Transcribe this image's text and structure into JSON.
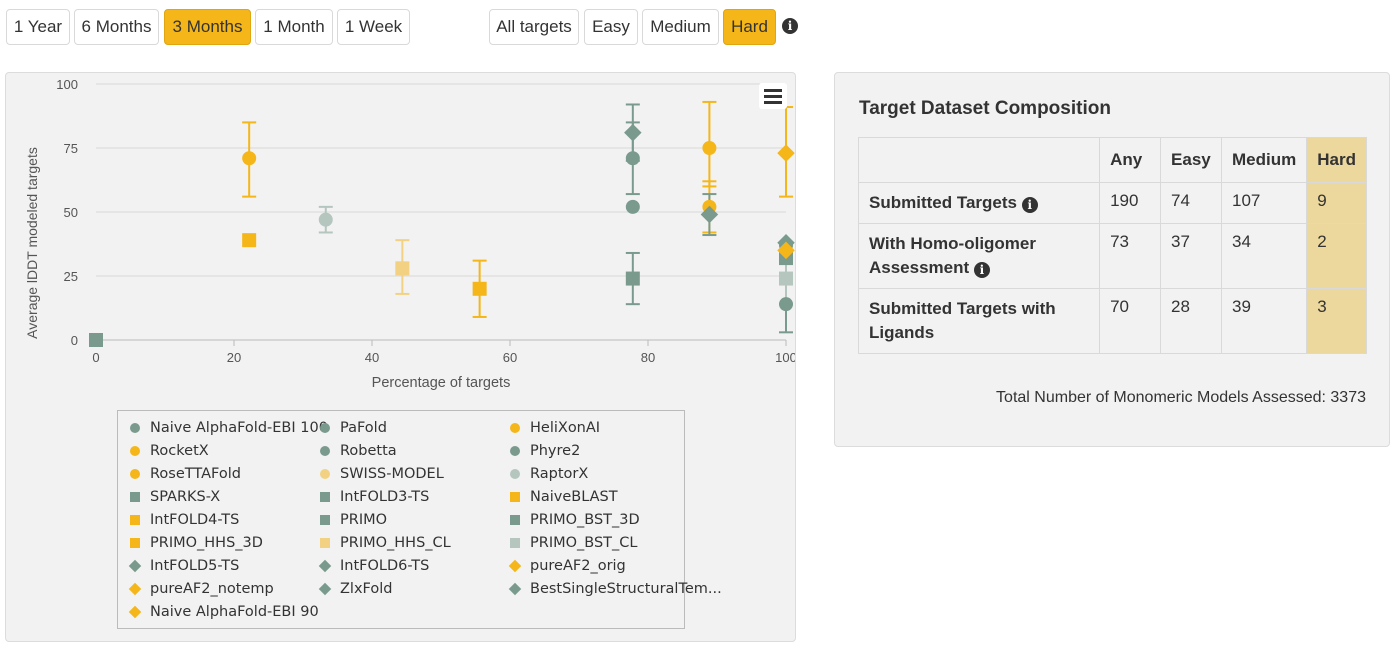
{
  "time_filters": [
    "1 Year",
    "6 Months",
    "3 Months",
    "1 Month",
    "1 Week"
  ],
  "time_filter_active": "3 Months",
  "difficulty_filters": [
    "All targets",
    "Easy",
    "Medium",
    "Hard"
  ],
  "difficulty_filter_active": "Hard",
  "colors": {
    "accent": "#f4b619",
    "teal": "#7a9a8e",
    "light_yellow": "#f2d282",
    "light_teal": "#b5c6bf",
    "hard_column": "#ecd79c"
  },
  "chart_data": {
    "type": "scatter",
    "xlabel": "Percentage of targets",
    "ylabel": "Average lDDT modeled targets",
    "xlim": [
      0,
      100
    ],
    "ylim": [
      0,
      100
    ],
    "xticks": [
      "0",
      "20",
      "40",
      "60",
      "80",
      "100"
    ],
    "yticks": [
      "0",
      "25",
      "50",
      "75",
      "100"
    ],
    "grid": "horizontal",
    "legend_placement": "bottom",
    "series": [
      {
        "name": "Naive AlphaFold-EBI 100",
        "marker": "circle",
        "color": "teal",
        "points": [
          {
            "x": 77.8,
            "y": 52
          }
        ]
      },
      {
        "name": "PaFold",
        "marker": "circle",
        "color": "teal",
        "points": [
          {
            "x": 77.8,
            "y": 71,
            "err": [
              57,
              85
            ]
          }
        ]
      },
      {
        "name": "HeliXonAI",
        "marker": "circle",
        "color": "accent",
        "points": [
          {
            "x": 88.9,
            "y": 75,
            "err": [
              60,
              93
            ]
          }
        ]
      },
      {
        "name": "RocketX",
        "marker": "circle",
        "color": "accent",
        "points": [
          {
            "x": 22.2,
            "y": 71,
            "err": [
              56,
              85
            ]
          }
        ]
      },
      {
        "name": "Robetta",
        "marker": "circle",
        "color": "teal",
        "points": [
          {
            "x": 100,
            "y": 14,
            "err": [
              3,
              26
            ]
          }
        ]
      },
      {
        "name": "Phyre2",
        "marker": "circle",
        "color": "teal",
        "points": [
          {
            "x": 100,
            "y": 37
          }
        ]
      },
      {
        "name": "RoseTTAFold",
        "marker": "circle",
        "color": "accent",
        "points": [
          {
            "x": 88.9,
            "y": 52,
            "err": [
              42,
              62
            ]
          }
        ]
      },
      {
        "name": "SWISS-MODEL",
        "marker": "circle",
        "color": "light_yellow",
        "points": [
          {
            "x": 100,
            "y": 34
          }
        ]
      },
      {
        "name": "RaptorX",
        "marker": "circle",
        "color": "light_teal",
        "points": [
          {
            "x": 33.3,
            "y": 47,
            "err": [
              42,
              52
            ]
          }
        ]
      },
      {
        "name": "SPARKS-X",
        "marker": "square",
        "color": "teal",
        "points": [
          {
            "x": 0,
            "y": 0
          }
        ]
      },
      {
        "name": "IntFOLD3-TS",
        "marker": "square",
        "color": "teal",
        "points": [
          {
            "x": 100,
            "y": 32
          }
        ]
      },
      {
        "name": "NaiveBLAST",
        "marker": "square",
        "color": "accent",
        "points": [
          {
            "x": 55.6,
            "y": 20,
            "err": [
              9,
              31
            ]
          }
        ]
      },
      {
        "name": "IntFOLD4-TS",
        "marker": "square",
        "color": "accent",
        "points": [
          {
            "x": 22.2,
            "y": 39
          }
        ]
      },
      {
        "name": "PRIMO",
        "marker": "square",
        "color": "teal",
        "points": [
          {
            "x": 77.8,
            "y": 24,
            "err": [
              14,
              34
            ]
          }
        ]
      },
      {
        "name": "PRIMO_BST_3D",
        "marker": "square",
        "color": "teal",
        "points": []
      },
      {
        "name": "PRIMO_HHS_3D",
        "marker": "square",
        "color": "accent",
        "points": []
      },
      {
        "name": "PRIMO_HHS_CL",
        "marker": "square",
        "color": "light_yellow",
        "points": [
          {
            "x": 44.4,
            "y": 28,
            "err": [
              18,
              39
            ]
          }
        ]
      },
      {
        "name": "PRIMO_BST_CL",
        "marker": "square",
        "color": "light_teal",
        "points": [
          {
            "x": 100,
            "y": 24,
            "err": [
              14,
              34
            ]
          }
        ]
      },
      {
        "name": "IntFOLD5-TS",
        "marker": "diamond",
        "color": "teal",
        "points": []
      },
      {
        "name": "IntFOLD6-TS",
        "marker": "diamond",
        "color": "teal",
        "points": [
          {
            "x": 100,
            "y": 38
          }
        ]
      },
      {
        "name": "pureAF2_orig",
        "marker": "diamond",
        "color": "accent",
        "points": [
          {
            "x": 100,
            "y": 73,
            "err": [
              56,
              91
            ]
          }
        ]
      },
      {
        "name": "pureAF2_notemp",
        "marker": "diamond",
        "color": "accent",
        "points": [
          {
            "x": 100,
            "y": 35
          }
        ]
      },
      {
        "name": "ZlxFold",
        "marker": "diamond",
        "color": "teal",
        "points": [
          {
            "x": 77.8,
            "y": 81,
            "err": [
              70,
              92
            ]
          }
        ]
      },
      {
        "name": "BestSingleStructuralTem...",
        "marker": "diamond",
        "color": "teal",
        "points": [
          {
            "x": 88.9,
            "y": 49,
            "err": [
              41,
              57
            ]
          }
        ]
      },
      {
        "name": "Naive AlphaFold-EBI 90",
        "marker": "diamond",
        "color": "accent",
        "points": []
      }
    ]
  },
  "composition": {
    "title": "Target Dataset Composition",
    "columns": [
      "",
      "Any",
      "Easy",
      "Medium",
      "Hard"
    ],
    "rows": [
      {
        "label": "Submitted Targets",
        "info": true,
        "values": [
          "190",
          "74",
          "107",
          "9"
        ]
      },
      {
        "label": "With Homo-oligomer Assessment",
        "info": true,
        "values": [
          "73",
          "37",
          "34",
          "2"
        ]
      },
      {
        "label": "Submitted Targets with Ligands",
        "info": false,
        "values": [
          "70",
          "28",
          "39",
          "3"
        ]
      }
    ],
    "total_text": "Total Number of Monomeric Models Assessed: 3373"
  }
}
